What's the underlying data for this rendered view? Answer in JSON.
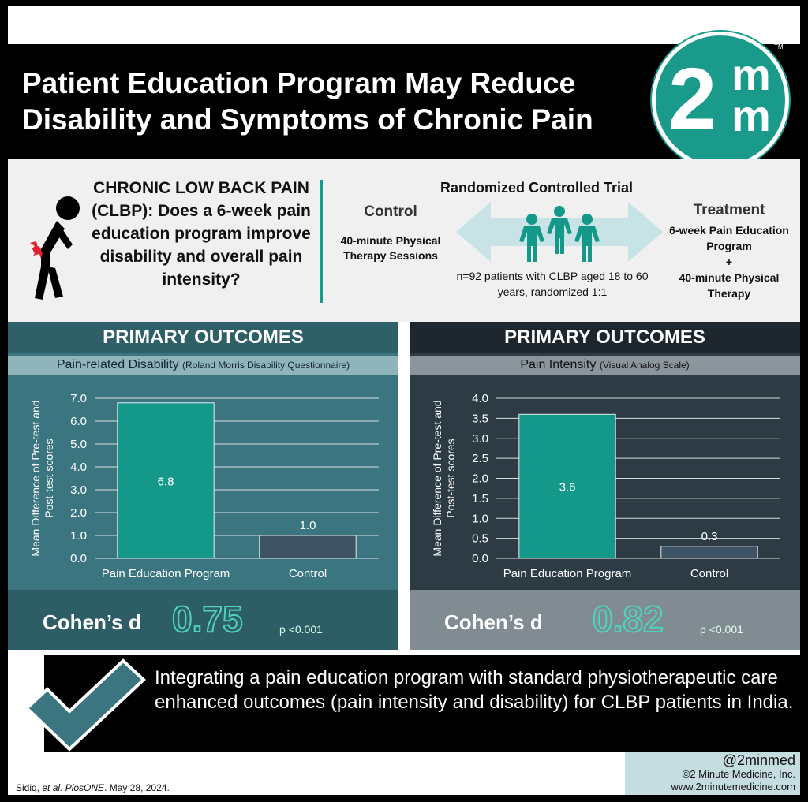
{
  "header": {
    "title": "Patient Education Program May Reduce Disability and Symptoms of Chronic Pain",
    "logo_number": "2",
    "logo_letter": "m",
    "logo_tm": "TM"
  },
  "study": {
    "question": "CHRONIC LOW BACK PAIN (CLBP): Does a 6-week pain education program improve disability and overall pain intensity?",
    "design": "Randomized Controlled Trial",
    "control_title": "Control",
    "control_desc": "40-minute Physical Therapy Sessions",
    "treatment_title": "Treatment",
    "treatment_desc_1": "6-week Pain Education Program",
    "treatment_plus": "+",
    "treatment_desc_2": "40-minute Physical Therapy",
    "sample": "n=92 patients with CLBP aged 18 to 60 years, randomized 1:1"
  },
  "panels": [
    {
      "heading": "PRIMARY OUTCOMES",
      "subtitle_main": "Pain-related Disability",
      "subtitle_small": "(Roland Morris Disability Questionnaire)",
      "cohen_label": "Cohen’s d",
      "cohen_value": "0.75",
      "p_value": "p <0.001"
    },
    {
      "heading": "PRIMARY OUTCOMES",
      "subtitle_main": "Pain Intensity",
      "subtitle_small": "(Visual Analog Scale)",
      "cohen_label": "Cohen’s d",
      "cohen_value": "0.82",
      "p_value": "p <0.001"
    }
  ],
  "chart_data": [
    {
      "type": "bar",
      "categories": [
        "Pain Education Program",
        "Control"
      ],
      "values": [
        6.8,
        1.0
      ],
      "data_labels": [
        "6.8",
        "1.0"
      ],
      "ylabel": "Mean Difference of Pre-test and Post-test scores",
      "ylim": [
        0,
        7
      ],
      "yticks": [
        "0.0",
        "1.0",
        "2.0",
        "3.0",
        "4.0",
        "5.0",
        "6.0",
        "7.0"
      ],
      "grid": true,
      "colors": [
        "#14988a",
        "#3e5465"
      ]
    },
    {
      "type": "bar",
      "categories": [
        "Pain Education Program",
        "Control"
      ],
      "values": [
        3.6,
        0.3
      ],
      "data_labels": [
        "3.6",
        "0.3"
      ],
      "ylabel": "Mean Difference of Pre-test and Post-test scores",
      "ylim": [
        0,
        4
      ],
      "yticks": [
        "0.0",
        "0.5",
        "1.0",
        "1.5",
        "2.0",
        "2.5",
        "3.0",
        "3.5",
        "4.0"
      ],
      "grid": true,
      "colors": [
        "#14988a",
        "#3e5465"
      ]
    }
  ],
  "conclusion": "Integrating a pain education program with standard physiotherapeutic care enhanced outcomes (pain intensity and disability) for CLBP patients in India.",
  "citation": {
    "authors": "Sidiq, ",
    "etal": "et al. PlosONE",
    "date": ". May 28, 2024."
  },
  "credit": {
    "handle": "@2minmed",
    "company": "©2 Minute Medicine, Inc.",
    "website": "www.2minutemedicine.com"
  },
  "colors": {
    "teal": "#1a9a8b",
    "left_panel": "#3b7680",
    "right_panel": "#2c3b44"
  }
}
